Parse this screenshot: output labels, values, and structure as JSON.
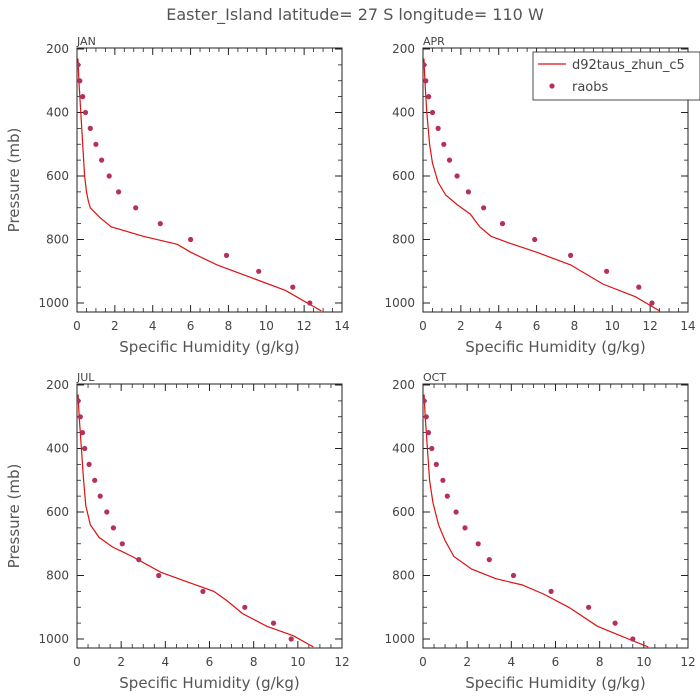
{
  "figure": {
    "title": "Easter_Island  latitude= 27 S longitude= 110 W"
  },
  "legend": {
    "model_label": "d92taus_zhun_c5",
    "obs_label": "raobs",
    "model_color": "#dd1111",
    "obs_color": "#b5305a",
    "placement": "top-right of APR panel"
  },
  "chart_data": [
    {
      "type": "line",
      "panel": "JAN",
      "title": "JAN",
      "xlabel": "Specific Humidity (g/kg)",
      "ylabel": "Pressure (mb)",
      "xlim": [
        0,
        14
      ],
      "xticks": [
        0,
        2,
        4,
        6,
        8,
        10,
        12,
        14
      ],
      "ylim": [
        1000,
        200
      ],
      "yticks": [
        200,
        400,
        600,
        800,
        1000
      ],
      "y_inverted": true,
      "grid": false,
      "series": [
        {
          "name": "d92taus_zhun_c5",
          "style": "line",
          "x": [
            0.05,
            0.1,
            0.2,
            0.3,
            0.4,
            0.5,
            0.6,
            0.7,
            1.2,
            1.8,
            3.5,
            5.3,
            6.0,
            7.4,
            9.2,
            11.0,
            12.9
          ],
          "y": [
            230,
            300,
            400,
            500,
            600,
            650,
            680,
            700,
            730,
            760,
            790,
            815,
            840,
            880,
            920,
            960,
            1025
          ]
        },
        {
          "name": "raobs",
          "style": "points",
          "x": [
            0.05,
            0.15,
            0.3,
            0.45,
            0.7,
            1.0,
            1.3,
            1.7,
            2.2,
            3.1,
            4.4,
            6.0,
            7.9,
            9.6,
            11.4,
            12.3
          ],
          "y": [
            250,
            300,
            350,
            400,
            450,
            500,
            550,
            600,
            650,
            700,
            750,
            800,
            850,
            900,
            950,
            1000
          ]
        }
      ]
    },
    {
      "type": "line",
      "panel": "APR",
      "title": "APR",
      "xlabel": "Specific Humidity (g/kg)",
      "ylabel": "",
      "xlim": [
        0,
        14
      ],
      "xticks": [
        0,
        2,
        4,
        6,
        8,
        10,
        12,
        14
      ],
      "ylim": [
        1000,
        200
      ],
      "yticks": [
        200,
        400,
        600,
        800,
        1000
      ],
      "y_inverted": true,
      "grid": false,
      "series": [
        {
          "name": "d92taus_zhun_c5",
          "style": "line",
          "x": [
            0.05,
            0.1,
            0.2,
            0.35,
            0.5,
            0.8,
            1.2,
            1.8,
            2.5,
            3.0,
            3.6,
            4.5,
            6.0,
            7.8,
            9.5,
            11.2,
            12.5
          ],
          "y": [
            230,
            300,
            400,
            500,
            560,
            620,
            660,
            690,
            720,
            760,
            790,
            810,
            840,
            880,
            940,
            980,
            1025
          ]
        },
        {
          "name": "raobs",
          "style": "points",
          "x": [
            0.05,
            0.15,
            0.3,
            0.5,
            0.8,
            1.1,
            1.4,
            1.8,
            2.4,
            3.2,
            4.2,
            5.9,
            7.8,
            9.7,
            11.4,
            12.1
          ],
          "y": [
            250,
            300,
            350,
            400,
            450,
            500,
            550,
            600,
            650,
            700,
            750,
            800,
            850,
            900,
            950,
            1000
          ]
        }
      ]
    },
    {
      "type": "line",
      "panel": "JUL",
      "title": "JUL",
      "xlabel": "Specific Humidity (g/kg)",
      "ylabel": "Pressure (mb)",
      "xlim": [
        0,
        12
      ],
      "xticks": [
        0,
        2,
        4,
        6,
        8,
        10,
        12
      ],
      "ylim": [
        1000,
        200
      ],
      "yticks": [
        200,
        400,
        600,
        800,
        1000
      ],
      "y_inverted": true,
      "grid": false,
      "series": [
        {
          "name": "d92taus_zhun_c5",
          "style": "line",
          "x": [
            0.05,
            0.1,
            0.2,
            0.3,
            0.4,
            0.6,
            1.0,
            1.6,
            2.5,
            3.8,
            5.0,
            6.2,
            6.8,
            7.5,
            8.6,
            9.8,
            10.7
          ],
          "y": [
            230,
            300,
            400,
            500,
            580,
            640,
            680,
            710,
            740,
            790,
            820,
            850,
            880,
            920,
            960,
            990,
            1025
          ]
        },
        {
          "name": "raobs",
          "style": "points",
          "x": [
            0.05,
            0.15,
            0.25,
            0.35,
            0.55,
            0.8,
            1.05,
            1.35,
            1.65,
            2.05,
            2.8,
            3.7,
            5.7,
            7.6,
            8.9,
            9.7
          ],
          "y": [
            250,
            300,
            350,
            400,
            450,
            500,
            550,
            600,
            650,
            700,
            750,
            800,
            850,
            900,
            950,
            1000
          ]
        }
      ]
    },
    {
      "type": "line",
      "panel": "OCT",
      "title": "OCT",
      "xlabel": "Specific Humidity (g/kg)",
      "ylabel": "",
      "xlim": [
        0,
        12
      ],
      "xticks": [
        0,
        2,
        4,
        6,
        8,
        10,
        12
      ],
      "ylim": [
        1000,
        200
      ],
      "yticks": [
        200,
        400,
        600,
        800,
        1000
      ],
      "y_inverted": true,
      "grid": false,
      "series": [
        {
          "name": "d92taus_zhun_c5",
          "style": "line",
          "x": [
            0.05,
            0.1,
            0.2,
            0.3,
            0.45,
            0.7,
            1.0,
            1.4,
            2.2,
            3.3,
            4.5,
            5.5,
            6.6,
            7.9,
            9.3,
            10.2
          ],
          "y": [
            230,
            300,
            400,
            500,
            570,
            640,
            690,
            740,
            780,
            810,
            830,
            860,
            900,
            960,
            1000,
            1025
          ]
        },
        {
          "name": "raobs",
          "style": "points",
          "x": [
            0.05,
            0.15,
            0.25,
            0.4,
            0.6,
            0.9,
            1.1,
            1.5,
            1.9,
            2.5,
            3.0,
            4.1,
            5.8,
            7.5,
            8.7,
            9.5
          ],
          "y": [
            250,
            300,
            350,
            400,
            450,
            500,
            550,
            600,
            650,
            700,
            750,
            800,
            850,
            900,
            950,
            1000
          ]
        }
      ]
    }
  ]
}
